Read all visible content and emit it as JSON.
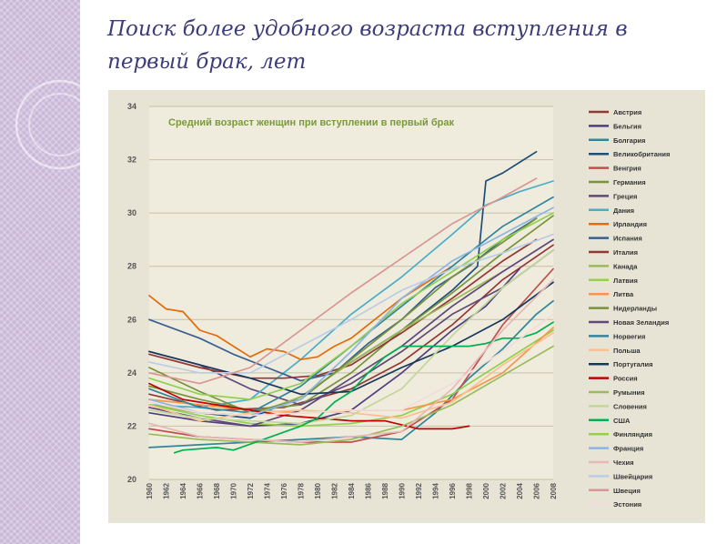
{
  "slide": {
    "title": "Поиск более удобного  возраста вступления в первый брак, лет"
  },
  "chart_data": {
    "type": "line",
    "title": "Средний возраст женщин при вступлении в первый брак",
    "xlabel": "",
    "ylabel": "",
    "ylim": [
      20,
      34
    ],
    "xlim": [
      1960,
      2008
    ],
    "yticks": [
      20,
      22,
      24,
      26,
      28,
      30,
      32,
      34
    ],
    "xticks": [
      1960,
      1962,
      1964,
      1966,
      1968,
      1970,
      1972,
      1974,
      1976,
      1978,
      1980,
      1982,
      1984,
      1986,
      1988,
      1990,
      1992,
      1994,
      1996,
      1998,
      2000,
      2002,
      2004,
      2006,
      2008
    ],
    "grid": true,
    "legend_position": "right",
    "series": [
      {
        "name": "Австрия",
        "color": "#953735",
        "x": [
          1960,
          1968,
          1976,
          1984,
          1990,
          1996,
          2002,
          2008
        ],
        "y": [
          23.2,
          22.6,
          22.7,
          23.4,
          24.4,
          25.8,
          27.5,
          28.8
        ]
      },
      {
        "name": "Бельгия",
        "color": "#4f3f7f",
        "x": [
          1960,
          1966,
          1972,
          1978,
          1984,
          1990,
          1996,
          2000,
          2004
        ],
        "y": [
          22.5,
          22.2,
          22.0,
          22.1,
          22.6,
          24.0,
          25.6,
          26.5,
          27.9
        ]
      },
      {
        "name": "Болгария",
        "color": "#31869b",
        "x": [
          1960,
          1966,
          1972,
          1978,
          1984,
          1990,
          1994,
          1998,
          2002,
          2006,
          2008
        ],
        "y": [
          21.2,
          21.3,
          21.4,
          21.5,
          21.6,
          21.5,
          22.5,
          23.8,
          24.9,
          26.2,
          26.7
        ]
      },
      {
        "name": "Великобритания",
        "color": "#1f4e79",
        "x": [
          1960,
          1966,
          1972,
          1978,
          1984,
          1990,
          1996,
          1999,
          2000,
          2002,
          2004,
          2006
        ],
        "y": [
          22.8,
          22.5,
          22.3,
          23.1,
          24.4,
          25.6,
          27.1,
          28.0,
          31.2,
          31.5,
          31.9,
          32.3
        ]
      },
      {
        "name": "Венгрия",
        "color": "#c0504d",
        "x": [
          1960,
          1966,
          1972,
          1978,
          1984,
          1990,
          1996,
          2002,
          2008
        ],
        "y": [
          21.9,
          21.6,
          21.5,
          21.4,
          21.4,
          21.8,
          23.0,
          25.8,
          27.9
        ]
      },
      {
        "name": "Германия",
        "color": "#77933c",
        "x": [
          1960,
          1966,
          1972,
          1978,
          1984,
          1990,
          1996,
          2002,
          2008
        ],
        "y": [
          23.5,
          23.0,
          22.6,
          22.8,
          24.0,
          25.6,
          27.0,
          28.5,
          29.9
        ]
      },
      {
        "name": "Греция",
        "color": "#604a7b",
        "x": [
          1960,
          1966,
          1972,
          1978,
          1984,
          1990,
          1996,
          2002,
          2008
        ],
        "y": [
          24.8,
          24.3,
          23.4,
          22.8,
          23.6,
          24.8,
          26.2,
          27.2,
          28.6
        ]
      },
      {
        "name": "Дания",
        "color": "#4bacc6",
        "x": [
          1960,
          1966,
          1972,
          1978,
          1984,
          1990,
          1996,
          2000,
          2004,
          2008
        ],
        "y": [
          22.8,
          22.7,
          23.0,
          24.5,
          26.2,
          27.6,
          29.2,
          30.3,
          30.8,
          31.2
        ]
      },
      {
        "name": "Ирландия",
        "color": "#e46c0a",
        "x": [
          1960,
          1962,
          1964,
          1966,
          1968,
          1970,
          1972,
          1974,
          1976,
          1978,
          1980,
          1982,
          1984,
          1986,
          1988,
          1990,
          1992,
          1994,
          1996
        ],
        "y": [
          26.9,
          26.4,
          26.3,
          25.6,
          25.4,
          25.0,
          24.6,
          24.9,
          24.8,
          24.5,
          24.6,
          25.0,
          25.3,
          25.8,
          26.3,
          26.8,
          27.2,
          27.6,
          28.0
        ]
      },
      {
        "name": "Испания",
        "color": "#366092",
        "x": [
          1960,
          1966,
          1970,
          1974,
          1978,
          1982,
          1986,
          1990,
          1994,
          1998,
          2002,
          2006
        ],
        "y": [
          26.0,
          25.3,
          24.7,
          24.2,
          23.7,
          24.0,
          25.1,
          26.0,
          27.2,
          28.0,
          29.0,
          29.8
        ]
      },
      {
        "name": "Италия",
        "color": "#943634",
        "x": [
          1960,
          1966,
          1972,
          1976,
          1980,
          1984,
          1990,
          1996,
          2002,
          2006
        ],
        "y": [
          24.7,
          24.2,
          23.8,
          23.8,
          23.9,
          24.3,
          25.5,
          26.8,
          28.2,
          29.0
        ]
      },
      {
        "name": "Канада",
        "color": "#9bbb59",
        "x": [
          1960,
          1966,
          1972,
          1978,
          1984,
          1990,
          1996,
          2002
        ],
        "y": [
          22.8,
          22.5,
          22.4,
          23.1,
          24.4,
          25.6,
          26.7,
          27.8
        ]
      },
      {
        "name": "Латвия",
        "color": "#92d050",
        "x": [
          1960,
          1966,
          1972,
          1978,
          1984,
          1990,
          1996,
          2002,
          2008
        ],
        "y": [
          22.8,
          22.4,
          22.1,
          22.0,
          22.1,
          22.4,
          23.2,
          24.4,
          25.6
        ]
      },
      {
        "name": "Литва",
        "color": "#f79646",
        "x": [
          1960,
          1966,
          1972,
          1978,
          1984,
          1990,
          1996,
          2002,
          2008
        ],
        "y": [
          23.0,
          22.8,
          22.6,
          22.5,
          22.6,
          22.6,
          23.0,
          24.0,
          25.7
        ]
      },
      {
        "name": "Нидерланды",
        "color": "#76923c",
        "x": [
          1960,
          1966,
          1972,
          1978,
          1984,
          1990,
          1996,
          2002,
          2006
        ],
        "y": [
          24.2,
          23.3,
          22.5,
          23.0,
          24.5,
          26.0,
          27.6,
          28.9,
          29.8
        ]
      },
      {
        "name": "Новая Зеландия",
        "color": "#5f497a",
        "x": [
          1960,
          1966,
          1972,
          1978,
          1984,
          1990,
          1996,
          2002,
          2008
        ],
        "y": [
          22.7,
          22.3,
          22.0,
          22.6,
          23.8,
          25.0,
          26.5,
          27.8,
          29.0
        ]
      },
      {
        "name": "Норвегия",
        "color": "#31859c",
        "x": [
          1960,
          1966,
          1972,
          1978,
          1984,
          1990,
          1996,
          2002,
          2008
        ],
        "y": [
          23.4,
          22.7,
          22.5,
          23.5,
          25.0,
          26.5,
          28.0,
          29.5,
          30.6
        ]
      },
      {
        "name": "Польша",
        "color": "#fac090",
        "x": [
          1960,
          1966,
          1972,
          1978,
          1984,
          1990,
          1996,
          2002,
          2008
        ],
        "y": [
          22.8,
          22.2,
          22.5,
          22.6,
          22.5,
          22.3,
          22.9,
          24.3,
          25.5
        ]
      },
      {
        "name": "Португалия",
        "color": "#17375e",
        "x": [
          1960,
          1966,
          1972,
          1978,
          1984,
          1990,
          1996,
          2002,
          2008
        ],
        "y": [
          24.8,
          24.3,
          23.8,
          23.2,
          23.3,
          24.2,
          25.0,
          26.0,
          27.4
        ]
      },
      {
        "name": "Россия",
        "color": "#c00000",
        "x": [
          1960,
          1964,
          1968,
          1972,
          1976,
          1980,
          1984,
          1988,
          1992,
          1996,
          1998
        ],
        "y": [
          23.6,
          23.0,
          22.8,
          22.6,
          22.4,
          22.3,
          22.2,
          22.2,
          21.9,
          21.9,
          22.0
        ]
      },
      {
        "name": "Румыния",
        "color": "#9bbb59",
        "x": [
          1960,
          1966,
          1972,
          1978,
          1984,
          1990,
          1996,
          2002,
          2008
        ],
        "y": [
          21.7,
          21.5,
          21.4,
          21.3,
          21.5,
          22.0,
          22.8,
          23.9,
          25.0
        ]
      },
      {
        "name": "Словения",
        "color": "#c3d69b",
        "x": [
          1960,
          1966,
          1972,
          1978,
          1984,
          1990,
          1996,
          2002,
          2008
        ],
        "y": [
          22.6,
          22.3,
          22.2,
          22.1,
          22.4,
          23.4,
          25.4,
          27.2,
          28.6
        ]
      },
      {
        "name": "США",
        "color": "#00b050",
        "x": [
          1963,
          1964,
          1968,
          1970,
          1978,
          1980,
          1982,
          1984,
          1986,
          1988,
          1990,
          1996,
          1998,
          2000,
          2002,
          2004,
          2006,
          2008
        ],
        "y": [
          21.0,
          21.1,
          21.2,
          21.1,
          22.0,
          22.3,
          22.9,
          23.3,
          24.0,
          24.6,
          25.0,
          25.0,
          25.0,
          25.1,
          25.3,
          25.3,
          25.5,
          25.9
        ]
      },
      {
        "name": "Финляндия",
        "color": "#92d050",
        "x": [
          1960,
          1966,
          1972,
          1978,
          1984,
          1990,
          1996,
          2002,
          2008
        ],
        "y": [
          23.8,
          23.2,
          23.0,
          23.6,
          25.0,
          26.6,
          27.8,
          29.0,
          30.0
        ]
      },
      {
        "name": "Франция",
        "color": "#8eb4e3",
        "x": [
          1960,
          1966,
          1972,
          1978,
          1984,
          1990,
          1996,
          2002,
          2008
        ],
        "y": [
          23.0,
          22.5,
          22.4,
          23.0,
          24.8,
          26.8,
          28.2,
          29.2,
          30.2
        ]
      },
      {
        "name": "Чехия",
        "color": "#e6b9b8",
        "x": [
          1960,
          1966,
          1972,
          1978,
          1984,
          1990,
          1996,
          2002,
          2008
        ],
        "y": [
          22.1,
          21.6,
          21.5,
          21.4,
          21.6,
          21.8,
          23.4,
          25.6,
          27.5
        ]
      },
      {
        "name": "Швейцария",
        "color": "#b9cde5",
        "x": [
          1960,
          1966,
          1972,
          1978,
          1984,
          1990,
          1996,
          2002,
          2008
        ],
        "y": [
          24.4,
          24.0,
          24.0,
          25.0,
          26.0,
          27.1,
          27.9,
          28.5,
          29.2
        ]
      },
      {
        "name": "Швеция",
        "color": "#d99694",
        "x": [
          1960,
          1966,
          1972,
          1978,
          1984,
          1990,
          1996,
          2002,
          2006
        ],
        "y": [
          24.0,
          23.6,
          24.2,
          25.6,
          27.0,
          28.3,
          29.6,
          30.6,
          31.3
        ]
      },
      {
        "name": "Эстония",
        "color": "#f2dcdb",
        "x": [
          1960,
          1966,
          1972,
          1978,
          1984,
          1990,
          1996,
          2002,
          2008
        ],
        "y": [
          22.9,
          22.5,
          22.4,
          22.5,
          22.6,
          22.6,
          23.6,
          24.8,
          26.2
        ]
      }
    ]
  }
}
